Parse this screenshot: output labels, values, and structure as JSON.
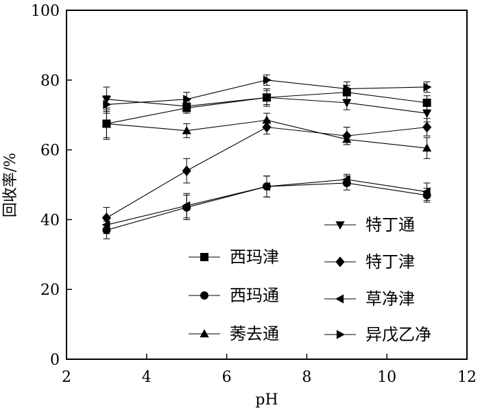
{
  "chart_data": {
    "type": "line",
    "title": "",
    "xlabel": "pH",
    "ylabel": "回收率/%",
    "xlim": [
      2,
      12
    ],
    "ylim": [
      0,
      100
    ],
    "xticks": [
      2,
      4,
      6,
      8,
      10,
      12
    ],
    "yticks": [
      0,
      20,
      40,
      60,
      80,
      100
    ],
    "grid": false,
    "legend_position": "inside-bottom, two columns",
    "x": [
      3,
      5,
      7,
      9,
      11
    ],
    "series": [
      {
        "name": "西玛津",
        "marker": "square",
        "values": [
          67.5,
          72,
          75,
          76.5,
          73.5
        ],
        "errors": [
          4.5,
          1.5,
          2.5,
          2,
          2
        ]
      },
      {
        "name": "西玛通",
        "marker": "circle",
        "values": [
          37,
          43.5,
          49.5,
          50.5,
          47
        ],
        "errors": [
          2.5,
          3.5,
          3,
          2,
          2
        ]
      },
      {
        "name": "莠去通",
        "marker": "triangle-up",
        "values": [
          67.5,
          65.5,
          68.5,
          63,
          60.5
        ],
        "errors": [
          4,
          2,
          2,
          1.5,
          3
        ]
      },
      {
        "name": "特丁通",
        "marker": "triangle-down",
        "values": [
          74.5,
          72.5,
          75,
          73.5,
          70.5
        ],
        "errors": [
          3.5,
          1.5,
          2,
          2,
          2.5
        ]
      },
      {
        "name": "特丁津",
        "marker": "diamond",
        "values": [
          40.5,
          54,
          66.5,
          64,
          66.5
        ],
        "errors": [
          3,
          3.5,
          2,
          2.5,
          2.5
        ]
      },
      {
        "name": "草净津",
        "marker": "triangle-left",
        "values": [
          38.5,
          44,
          49.5,
          51.5,
          48
        ],
        "errors": [
          2.5,
          3.5,
          3,
          1.5,
          2.5
        ]
      },
      {
        "name": "异戊乙净",
        "marker": "triangle-right",
        "values": [
          73,
          74.5,
          80,
          77.5,
          78
        ],
        "errors": [
          2.5,
          2,
          1.5,
          2,
          1.5
        ]
      }
    ]
  }
}
